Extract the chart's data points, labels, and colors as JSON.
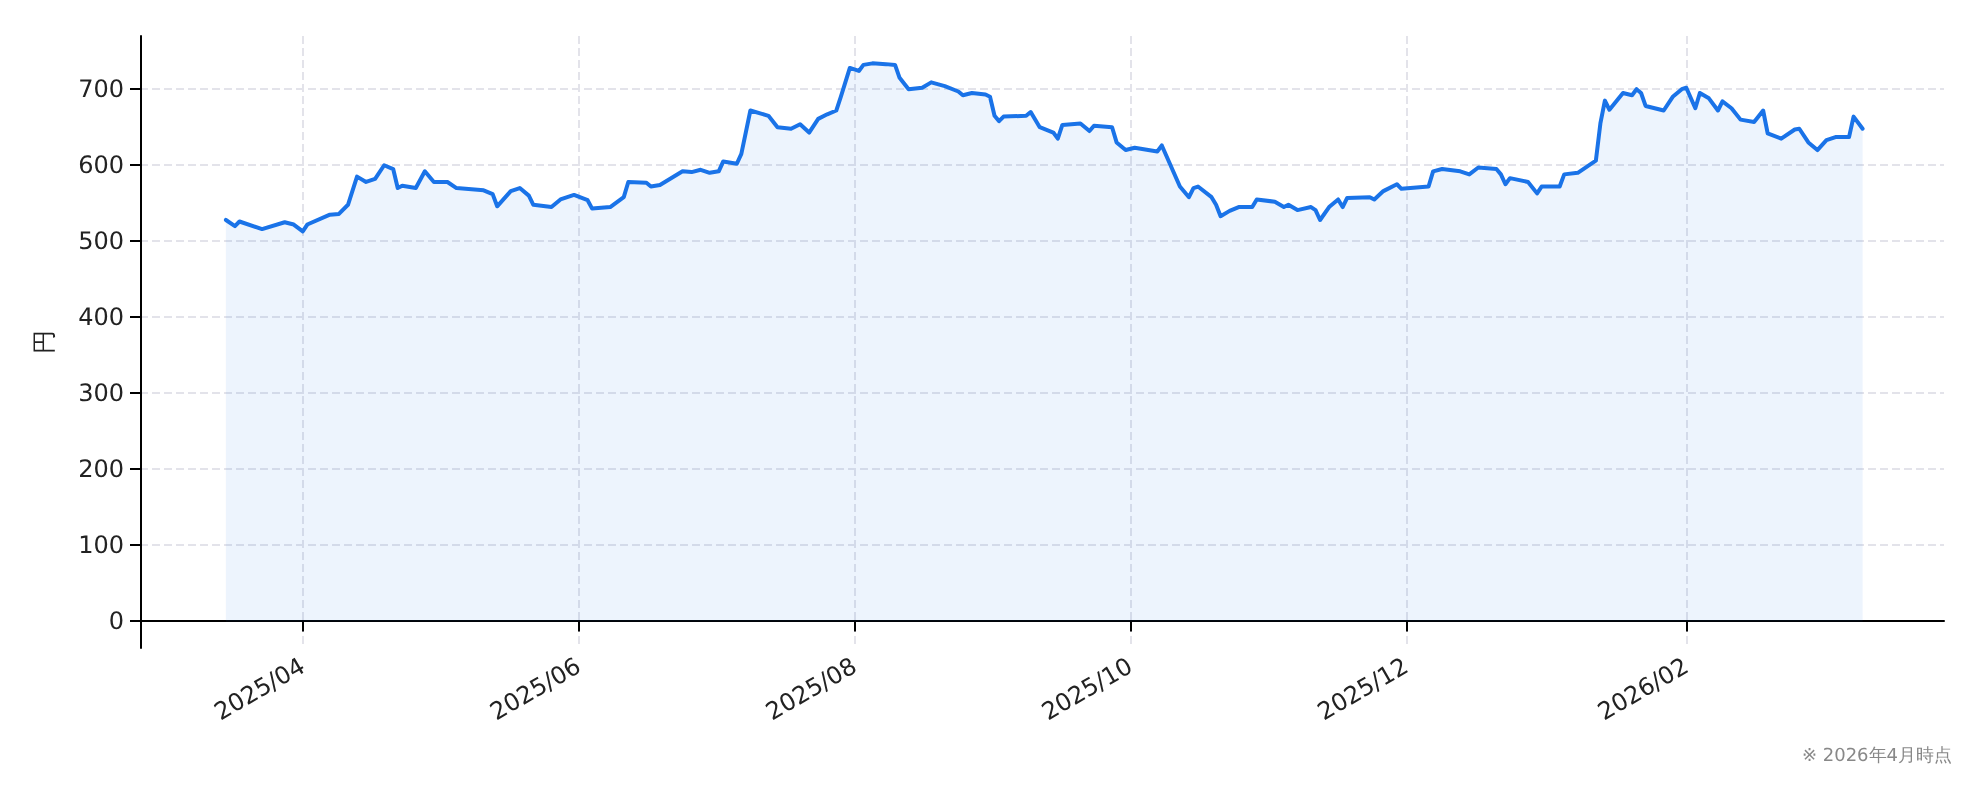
{
  "chart_data": {
    "type": "area",
    "ylabel": "円",
    "annotations": [
      "※ 2026年4月時点"
    ],
    "x": [
      "2025-03-15",
      "2025-03-17",
      "2025-03-18",
      "2025-03-23",
      "2025-03-28",
      "2025-03-30",
      "2025-04-01",
      "2025-04-02",
      "2025-04-07",
      "2025-04-09",
      "2025-04-11",
      "2025-04-13",
      "2025-04-15",
      "2025-04-17",
      "2025-04-19",
      "2025-04-21",
      "2025-04-22",
      "2025-04-23",
      "2025-04-26",
      "2025-04-28",
      "2025-04-30",
      "2025-05-03",
      "2025-05-05",
      "2025-05-11",
      "2025-05-13",
      "2025-05-14",
      "2025-05-17",
      "2025-05-19",
      "2025-05-21",
      "2025-05-22",
      "2025-05-26",
      "2025-05-28",
      "2025-05-31",
      "2025-06-03",
      "2025-06-04",
      "2025-06-08",
      "2025-06-11",
      "2025-06-12",
      "2025-06-16",
      "2025-06-17",
      "2025-06-19",
      "2025-06-24",
      "2025-06-26",
      "2025-06-28",
      "2025-06-30",
      "2025-07-02",
      "2025-07-03",
      "2025-07-06",
      "2025-07-07",
      "2025-07-09",
      "2025-07-13",
      "2025-07-15",
      "2025-07-18",
      "2025-07-20",
      "2025-07-22",
      "2025-07-24",
      "2025-07-26",
      "2025-07-28",
      "2025-07-29",
      "2025-07-31",
      "2025-08-02",
      "2025-08-03",
      "2025-08-05",
      "2025-08-08",
      "2025-08-10",
      "2025-08-11",
      "2025-08-13",
      "2025-08-16",
      "2025-08-18",
      "2025-08-21",
      "2025-08-24",
      "2025-08-25",
      "2025-08-27",
      "2025-08-30",
      "2025-08-31",
      "2025-09-01",
      "2025-09-02",
      "2025-09-03",
      "2025-09-08",
      "2025-09-09",
      "2025-09-11",
      "2025-09-14",
      "2025-09-15",
      "2025-09-16",
      "2025-09-20",
      "2025-09-22",
      "2025-09-23",
      "2025-09-27",
      "2025-09-28",
      "2025-09-30",
      "2025-10-02",
      "2025-10-07",
      "2025-10-08",
      "2025-10-12",
      "2025-10-14",
      "2025-10-15",
      "2025-10-16",
      "2025-10-19",
      "2025-10-20",
      "2025-10-21",
      "2025-10-23",
      "2025-10-25",
      "2025-10-28",
      "2025-10-29",
      "2025-11-02",
      "2025-11-04",
      "2025-11-05",
      "2025-11-07",
      "2025-11-10",
      "2025-11-11",
      "2025-11-12",
      "2025-11-14",
      "2025-11-16",
      "2025-11-17",
      "2025-11-18",
      "2025-11-23",
      "2025-11-24",
      "2025-11-26",
      "2025-11-29",
      "2025-11-30",
      "2025-12-06",
      "2025-12-07",
      "2025-12-09",
      "2025-12-13",
      "2025-12-15",
      "2025-12-17",
      "2025-12-21",
      "2025-12-22",
      "2025-12-23",
      "2025-12-24",
      "2025-12-28",
      "2025-12-30",
      "2025-12-31",
      "2026-01-04",
      "2026-01-05",
      "2026-01-08",
      "2026-01-12",
      "2026-01-13",
      "2026-01-14",
      "2026-01-15",
      "2026-01-18",
      "2026-01-20",
      "2026-01-21",
      "2026-01-22",
      "2026-01-23",
      "2026-01-27",
      "2026-01-29",
      "2026-01-31",
      "2026-02-01",
      "2026-02-03",
      "2026-02-04",
      "2026-02-06",
      "2026-02-08",
      "2026-02-09",
      "2026-02-11",
      "2026-02-13",
      "2026-02-16",
      "2026-02-18",
      "2026-02-19",
      "2026-02-22",
      "2026-02-25",
      "2026-02-26",
      "2026-02-28",
      "2026-03-02",
      "2026-03-04",
      "2026-03-06",
      "2026-03-09",
      "2026-03-10",
      "2026-03-12"
    ],
    "series": [
      {
        "color": "#1a73e8",
        "values": [
          528,
          520,
          526,
          516,
          525,
          522,
          513,
          522,
          535,
          536,
          548,
          585,
          578,
          582,
          600,
          595,
          570,
          573,
          570,
          592,
          578,
          578,
          570,
          567,
          562,
          546,
          566,
          570,
          560,
          548,
          545,
          555,
          561,
          554,
          543,
          545,
          558,
          578,
          577,
          572,
          574,
          592,
          591,
          594,
          590,
          592,
          605,
          602,
          615,
          672,
          665,
          650,
          648,
          654,
          643,
          661,
          667,
          672,
          690,
          728,
          724,
          732,
          734,
          733,
          732,
          715,
          700,
          702,
          709,
          704,
          697,
          692,
          695,
          693,
          690,
          665,
          658,
          664,
          665,
          670,
          650,
          643,
          635,
          653,
          655,
          645,
          652,
          650,
          630,
          620,
          623,
          618,
          626,
          572,
          558,
          570,
          572,
          558,
          548,
          533,
          540,
          545,
          545,
          555,
          552,
          545,
          548,
          541,
          545,
          541,
          528,
          545,
          555,
          545,
          557,
          558,
          555,
          566,
          575,
          569,
          572,
          592,
          595,
          592,
          588,
          597,
          595,
          588,
          575,
          583,
          578,
          563,
          572,
          572,
          588,
          590,
          606,
          655,
          685,
          673,
          695,
          692,
          700,
          695,
          678,
          672,
          690,
          700,
          702,
          675,
          695,
          688,
          672,
          684,
          675,
          660,
          657,
          672,
          642,
          635,
          647,
          648,
          630,
          620,
          633,
          637,
          637,
          664,
          648
        ]
      }
    ],
    "xlim": [
      "2025-02-24",
      "2026-03-30"
    ],
    "xticks": [
      {
        "value": "2025-04-01",
        "label": "2025/04"
      },
      {
        "value": "2025-06-01",
        "label": "2025/06"
      },
      {
        "value": "2025-08-01",
        "label": "2025/08"
      },
      {
        "value": "2025-10-01",
        "label": "2025/10"
      },
      {
        "value": "2025-12-01",
        "label": "2025/12"
      },
      {
        "value": "2026-02-01",
        "label": "2026/02"
      }
    ],
    "ylim": [
      -35,
      770
    ],
    "yticks": [
      0,
      100,
      200,
      300,
      400,
      500,
      600,
      700
    ],
    "grid": true,
    "legend": false,
    "marker": "none",
    "line_style": "solid"
  }
}
